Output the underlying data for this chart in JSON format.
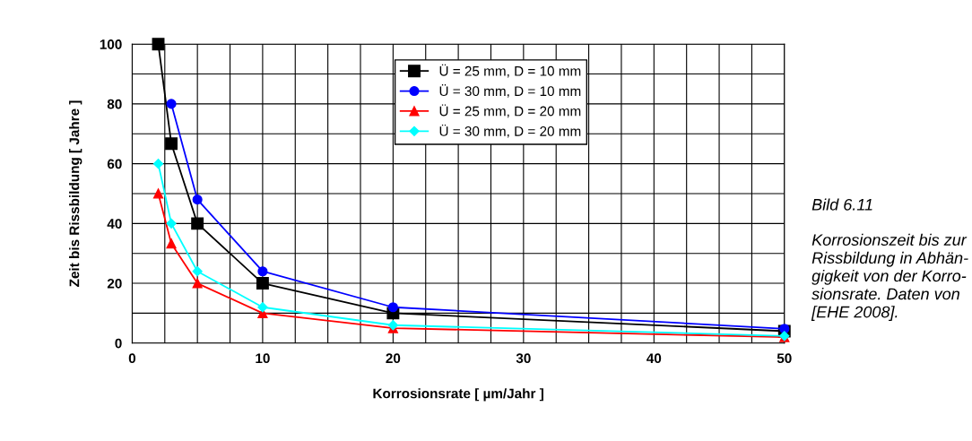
{
  "chart_data": {
    "type": "line",
    "xlabel": "Korrosionsrate [ µm/Jahr ]",
    "ylabel": "Zeit bis Rissbildung [ Jahre ]",
    "x": [
      2,
      3,
      5,
      10,
      20,
      50
    ],
    "series": [
      {
        "name": "Ü = 25 mm, D = 10 mm",
        "color": "#000000",
        "marker": "square",
        "values": [
          100,
          66.7,
          40,
          20,
          10,
          4
        ]
      },
      {
        "name": "Ü = 30 mm, D = 10 mm",
        "color": "#0000ff",
        "marker": "circle",
        "values": [
          null,
          80,
          48,
          24,
          12,
          4.8
        ]
      },
      {
        "name": "Ü = 25 mm, D = 20 mm",
        "color": "#ff0000",
        "marker": "triangle",
        "values": [
          50,
          33.3,
          20,
          10,
          5,
          2
        ]
      },
      {
        "name": "Ü = 30 mm, D = 20 mm",
        "color": "#00ffff",
        "marker": "diamond",
        "values": [
          60,
          40,
          24,
          12,
          6,
          2.4
        ]
      }
    ],
    "xlim": [
      0,
      50
    ],
    "ylim": [
      0,
      100
    ],
    "xticks": [
      0,
      {
        "value": 2.5,
        "label": null
      },
      {
        "value": 5,
        "label": null
      },
      {
        "value": 7.5,
        "label": null
      },
      10,
      {
        "value": 12.5,
        "label": null
      },
      {
        "value": 15,
        "label": null
      },
      {
        "value": 17.5,
        "label": null
      },
      20,
      {
        "value": 22.5,
        "label": null
      },
      {
        "value": 25,
        "label": null
      },
      {
        "value": 27.5,
        "label": null
      },
      30,
      {
        "value": 32.5,
        "label": null
      },
      {
        "value": 35,
        "label": null
      },
      {
        "value": 37.5,
        "label": null
      },
      40,
      {
        "value": 42.5,
        "label": null
      },
      {
        "value": 45,
        "label": null
      },
      {
        "value": 47.5,
        "label": null
      },
      50
    ],
    "yticks": [
      0,
      {
        "value": 10,
        "label": null
      },
      20,
      {
        "value": 30,
        "label": null
      },
      40,
      {
        "value": 50,
        "label": null
      },
      60,
      {
        "value": 70,
        "label": null
      },
      80,
      {
        "value": 90,
        "label": null
      },
      100
    ],
    "grid": true,
    "legend": "top",
    "line_style": "solid",
    "annotations": [
      "Bild 6.11",
      "Korrosionszeit bis zur\nRissbildung in Abhän-\ngigkeit von der Korro-\nsionsrate. Daten von\n[EHE 2008]."
    ]
  }
}
